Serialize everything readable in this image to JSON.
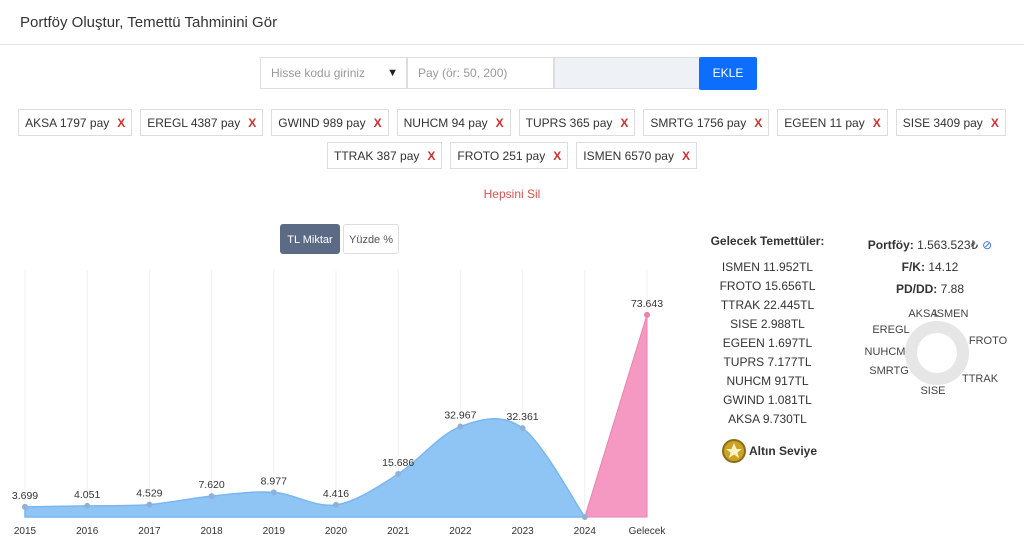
{
  "header": {
    "title": "Portföy Oluştur, Temettü Tahminini Gör"
  },
  "form": {
    "stock_placeholder": "Hisse kodu giriniz",
    "amount_placeholder": "Pay (ör: 50, 200)",
    "add_button": "EKLE",
    "remove_icon": "X"
  },
  "holdings": [
    "AKSA 1797 pay",
    "EREGL 4387 pay",
    "GWIND 989 pay",
    "NUHCM 94 pay",
    "TUPRS 365 pay",
    "SMRTG 1756 pay",
    "EGEEN 11 pay",
    "SISE 3409 pay",
    "TTRAK 387 pay",
    "FROTO 251 pay",
    "ISMEN 6570 pay"
  ],
  "delete_all": "Hepsini Sil",
  "toggles": [
    "TL Miktar",
    "Yüzde %"
  ],
  "chart_data": {
    "type": "area",
    "categories": [
      "2015",
      "2016",
      "2017",
      "2018",
      "2019",
      "2020",
      "2021",
      "2022",
      "2023",
      "2024",
      "Gelecek"
    ],
    "values": [
      3699,
      4051,
      4529,
      7620,
      8977,
      4416,
      15686,
      32967,
      32361,
      0,
      73643
    ],
    "value_labels": [
      "3.699",
      "4.051",
      "4.529",
      "7.620",
      "8.977",
      "4.416",
      "15.686",
      "32.967",
      "32.361",
      null,
      "73.643"
    ],
    "color": "#8ec5f5",
    "forecast_color": "#f599c2",
    "ylim": [
      0,
      90000
    ],
    "grid": true
  },
  "future_dividends": {
    "title": "Gelecek Temettüler:",
    "items": [
      "ISMEN 11.952TL",
      "FROTO 15.656TL",
      "TTRAK 22.445TL",
      "SISE 2.988TL",
      "EGEEN 1.697TL",
      "TUPRS 7.177TL",
      "NUHCM 917TL",
      "GWIND 1.081TL",
      "AKSA 9.730TL"
    ],
    "level": "Altın Seviye"
  },
  "stats": [
    {
      "label": "Portföy:",
      "value": "1.563.523₺"
    },
    {
      "label": "F/K:",
      "value": "14.12"
    },
    {
      "label": "PD/DD:",
      "value": "7.88"
    }
  ],
  "donut_labels": [
    "AKSA",
    "ISMEN",
    "EREGL",
    "FROTO",
    "NUHCM",
    "SMRTG",
    "TTRAK",
    "SISE"
  ]
}
